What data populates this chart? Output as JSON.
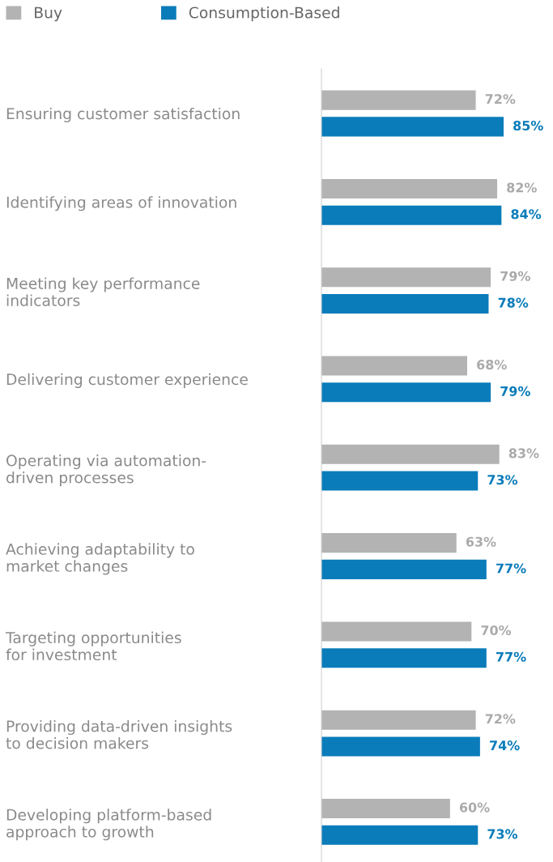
{
  "chart_data": {
    "type": "bar",
    "orientation": "horizontal",
    "categories": [
      "Ensuring customer satisfaction",
      "Identifying areas of innovation",
      "Meeting key performance\nindicators",
      "Delivering customer experience",
      "Operating via automation-\ndriven processes",
      "Achieving adaptability to\nmarket changes",
      "Targeting opportunities\nfor investment",
      "Providing data-driven insights\nto decision makers",
      "Developing platform-based\napproach to growth"
    ],
    "series": [
      {
        "name": "Buy",
        "color": "#b3b3b3",
        "values": [
          72,
          82,
          79,
          68,
          83,
          63,
          70,
          72,
          60
        ],
        "value_labels": [
          "72%",
          "82%",
          "79%",
          "68%",
          "83%",
          "63%",
          "70%",
          "72%",
          "60%"
        ]
      },
      {
        "name": "Consumption-Based",
        "color": "#0a7cba",
        "values": [
          85,
          84,
          78,
          79,
          73,
          77,
          77,
          74,
          73
        ],
        "value_labels": [
          "85%",
          "84%",
          "78%",
          "79%",
          "73%",
          "77%",
          "77%",
          "74%",
          "73%"
        ]
      }
    ],
    "tick_labels": "y",
    "legend": "top left",
    "grid": false
  }
}
